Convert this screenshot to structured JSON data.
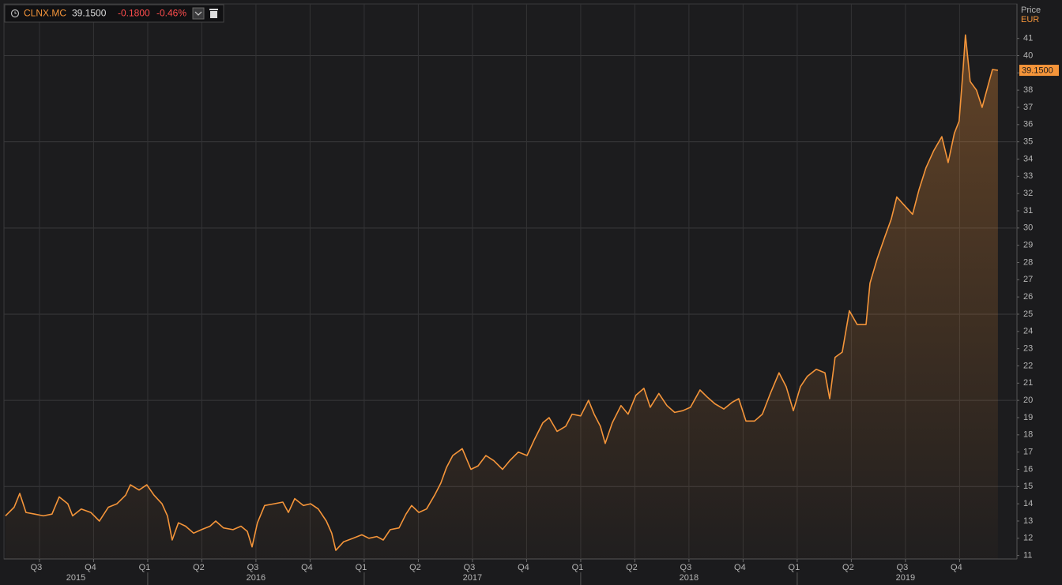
{
  "header": {
    "last": "39.1500",
    "change": "-0.1800",
    "change_pct": "-0.46%"
  },
  "chart_data": {
    "type": "line",
    "y_axis_label": "Price",
    "y_axis_unit": "EUR",
    "grid": true,
    "grid_step": 5,
    "xlim": [
      2015.336,
      2020.015
    ],
    "ylim": [
      10.8,
      43
    ],
    "yticks": [
      11,
      12,
      13,
      14,
      15,
      16,
      17,
      18,
      19,
      20,
      21,
      22,
      23,
      24,
      25,
      26,
      27,
      28,
      29,
      30,
      31,
      32,
      33,
      34,
      35,
      36,
      37,
      38,
      39,
      40,
      41
    ],
    "xticks": [
      {
        "value": 2015.5,
        "label": "Q3"
      },
      {
        "value": 2015.75,
        "label": "Q4"
      },
      {
        "value": 2016,
        "label": "Q1"
      },
      {
        "value": 2016.25,
        "label": "Q2"
      },
      {
        "value": 2016.5,
        "label": "Q3"
      },
      {
        "value": 2016.75,
        "label": "Q4"
      },
      {
        "value": 2017,
        "label": "Q1"
      },
      {
        "value": 2017.25,
        "label": "Q2"
      },
      {
        "value": 2017.5,
        "label": "Q3"
      },
      {
        "value": 2017.75,
        "label": "Q4"
      },
      {
        "value": 2018,
        "label": "Q1"
      },
      {
        "value": 2018.25,
        "label": "Q2"
      },
      {
        "value": 2018.5,
        "label": "Q3"
      },
      {
        "value": 2018.75,
        "label": "Q4"
      },
      {
        "value": 2019,
        "label": "Q1"
      },
      {
        "value": 2019.25,
        "label": "Q2"
      },
      {
        "value": 2019.5,
        "label": "Q3"
      },
      {
        "value": 2019.75,
        "label": "Q4"
      }
    ],
    "years": [
      2015,
      2016,
      2017,
      2018,
      2019
    ],
    "x": [
      2015.343,
      2015.383,
      2015.409,
      2015.438,
      2015.478,
      2015.518,
      2015.558,
      2015.591,
      2015.631,
      2015.653,
      2015.693,
      2015.737,
      2015.777,
      2015.818,
      2015.858,
      2015.898,
      2015.92,
      2015.96,
      2015.996,
      2016.029,
      2016.066,
      2016.091,
      2016.113,
      2016.142,
      2016.175,
      2016.212,
      2016.248,
      2016.288,
      2016.314,
      2016.35,
      2016.394,
      2016.431,
      2016.46,
      2016.482,
      2016.507,
      2016.54,
      2016.584,
      2016.624,
      2016.65,
      2016.679,
      2016.719,
      2016.752,
      2016.788,
      2016.825,
      2016.85,
      2016.869,
      2016.905,
      2016.949,
      2016.989,
      2017.022,
      2017.058,
      2017.088,
      2017.12,
      2017.161,
      2017.193,
      2017.219,
      2017.252,
      2017.288,
      2017.325,
      2017.354,
      2017.38,
      2017.409,
      2017.453,
      2017.493,
      2017.526,
      2017.562,
      2017.599,
      2017.639,
      2017.672,
      2017.712,
      2017.752,
      2017.785,
      2017.825,
      2017.854,
      2017.891,
      2017.931,
      2017.96,
      2018.0,
      2018.036,
      2018.062,
      2018.091,
      2018.113,
      2018.146,
      2018.186,
      2018.219,
      2018.255,
      2018.292,
      2018.321,
      2018.361,
      2018.398,
      2018.434,
      2018.471,
      2018.507,
      2018.551,
      2018.584,
      2018.62,
      2018.661,
      2018.701,
      2018.73,
      2018.763,
      2018.803,
      2018.839,
      2018.876,
      2018.916,
      2018.949,
      2018.982,
      2019.015,
      2019.047,
      2019.088,
      2019.128,
      2019.15,
      2019.175,
      2019.208,
      2019.241,
      2019.277,
      2019.318,
      2019.336,
      2019.369,
      2019.405,
      2019.434,
      2019.46,
      2019.496,
      2019.533,
      2019.562,
      2019.595,
      2019.631,
      2019.668,
      2019.697,
      2019.726,
      2019.748,
      2019.766,
      2019.777,
      2019.799,
      2019.828,
      2019.854,
      2019.88,
      2019.902,
      2019.927
    ],
    "series": [
      {
        "name": "CLNX.MC",
        "color": "#f5953a",
        "values": [
          13.3,
          13.8,
          14.6,
          13.5,
          13.4,
          13.3,
          13.4,
          14.4,
          14.0,
          13.3,
          13.7,
          13.5,
          13.0,
          13.8,
          14.0,
          14.5,
          15.1,
          14.8,
          15.1,
          14.5,
          14.0,
          13.3,
          11.9,
          12.9,
          12.7,
          12.3,
          12.5,
          12.7,
          13.0,
          12.6,
          12.5,
          12.7,
          12.4,
          11.5,
          12.9,
          13.9,
          14.0,
          14.1,
          13.5,
          14.3,
          13.9,
          14.0,
          13.7,
          13.0,
          12.3,
          11.3,
          11.8,
          12.0,
          12.2,
          12.0,
          12.1,
          11.9,
          12.5,
          12.6,
          13.4,
          13.9,
          13.5,
          13.7,
          14.5,
          15.2,
          16.1,
          16.8,
          17.2,
          16.0,
          16.2,
          16.8,
          16.5,
          16.0,
          16.5,
          17.0,
          16.8,
          17.7,
          18.7,
          19.0,
          18.2,
          18.5,
          19.2,
          19.1,
          20.0,
          19.2,
          18.5,
          17.5,
          18.7,
          19.7,
          19.2,
          20.3,
          20.7,
          19.6,
          20.4,
          19.7,
          19.3,
          19.4,
          19.6,
          20.6,
          20.2,
          19.8,
          19.5,
          19.9,
          20.1,
          18.8,
          18.8,
          19.2,
          20.4,
          21.6,
          20.8,
          19.4,
          20.8,
          21.4,
          21.8,
          21.6,
          20.1,
          22.5,
          22.8,
          25.2,
          24.4,
          24.4,
          26.8,
          28.2,
          29.5,
          30.5,
          31.8,
          31.3,
          30.8,
          32.2,
          33.5,
          34.5,
          35.3,
          33.8,
          35.5,
          36.2,
          39.2,
          41.2,
          38.5,
          38.0,
          37.0,
          38.2,
          39.2,
          39.15
        ]
      }
    ]
  }
}
